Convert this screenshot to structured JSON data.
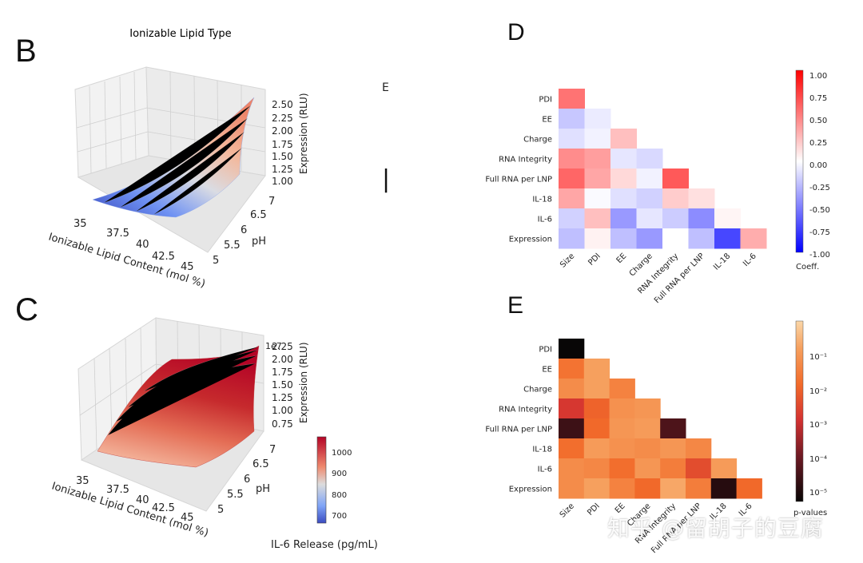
{
  "panel_labels": {
    "b": "B",
    "c": "C",
    "d": "D",
    "e": "E"
  },
  "stray_marks": {
    "e_fragment": "E",
    "bar_glyph": "|"
  },
  "watermark": "知乎 @留胡子的豆腐",
  "chart_data": [
    {
      "id": "B",
      "type": "surface3d",
      "title": "Ionizable Lipid  Type",
      "xlabel": "Ionizable Lipid Content (mol %)",
      "ylabel": "pH",
      "zlabel": "Expression (RLU)",
      "x_ticks": [
        "35",
        "37.5",
        "40",
        "42.5",
        "45"
      ],
      "y_ticks": [
        "5",
        "5.5",
        "6",
        "6.5",
        "7"
      ],
      "z_ticks": [
        "1.00",
        "1.25",
        "1.50",
        "1.75",
        "2.00",
        "2.25",
        "2.50"
      ],
      "xlim": [
        35,
        45
      ],
      "ylim": [
        5,
        7
      ],
      "zlim": [
        1.0,
        2.5
      ],
      "colormap": "coolwarm"
    },
    {
      "id": "C",
      "type": "surface3d",
      "xlabel": "Ionizable Lipid Content (mol %)",
      "ylabel": "pH",
      "zlabel": "Expression (RLU)",
      "z_offset": "1e7",
      "x_ticks": [
        "35",
        "37.5",
        "40",
        "42.5",
        "45"
      ],
      "y_ticks": [
        "5",
        "5.5",
        "6",
        "6.5",
        "7"
      ],
      "z_ticks": [
        "0.75",
        "1.00",
        "1.25",
        "1.50",
        "1.75",
        "2.00",
        "2.25"
      ],
      "xlim": [
        35,
        45
      ],
      "ylim": [
        5,
        7
      ],
      "zlim": [
        0.75,
        2.25
      ],
      "colormap": "coolwarm",
      "colorbar": {
        "label": "IL-6 Release (pg/mL)",
        "ticks": [
          "700",
          "800",
          "900",
          "1000"
        ],
        "range": [
          650,
          1060
        ]
      }
    },
    {
      "id": "D",
      "type": "heatmap",
      "row_labels": [
        "PDI",
        "EE",
        "Charge",
        "RNA Integrity",
        "Full RNA per LNP",
        "IL-18",
        "IL-6",
        "Expression"
      ],
      "col_labels": [
        "Size",
        "PDI",
        "EE",
        "Charge",
        "RNA Integrity",
        "Full RNA per LNP",
        "IL-18",
        "IL-6"
      ],
      "values": [
        [
          0.55
        ],
        [
          -0.22,
          -0.08
        ],
        [
          -0.12,
          -0.05,
          0.25
        ],
        [
          0.45,
          0.38,
          -0.1,
          -0.15
        ],
        [
          0.6,
          0.35,
          0.15,
          -0.05,
          0.65
        ],
        [
          0.35,
          -0.02,
          -0.12,
          -0.18,
          0.2,
          0.12
        ],
        [
          -0.18,
          0.25,
          -0.4,
          -0.1,
          -0.2,
          -0.45,
          0.04
        ],
        [
          -0.25,
          0.05,
          -0.25,
          -0.4,
          0.0,
          -0.25,
          -0.72,
          0.32
        ]
      ],
      "colorbar": {
        "label": "Coeff.",
        "ticks": [
          "1.00",
          "0.75",
          "0.50",
          "0.25",
          "0.00",
          "-0.25",
          "-0.50",
          "-0.75",
          "-1.00"
        ],
        "range": [
          -1.0,
          1.0
        ]
      }
    },
    {
      "id": "E",
      "type": "heatmap",
      "row_labels": [
        "PDI",
        "EE",
        "Charge",
        "RNA Integrity",
        "Full RNA per LNP",
        "IL-18",
        "IL-6",
        "Expression"
      ],
      "col_labels": [
        "Size",
        "PDI",
        "EE",
        "Charge",
        "RNA Integrity",
        "Full RNA per LNP",
        "IL-18",
        "IL-6"
      ],
      "col_labels_note": "rendered partially obscured by watermark",
      "log10_values": [
        [
          -5.3
        ],
        [
          -1.7,
          -0.8
        ],
        [
          -1.2,
          -0.8,
          -1.4
        ],
        [
          -2.8,
          -2.0,
          -1.1,
          -1.0
        ],
        [
          -4.6,
          -1.9,
          -1.0,
          -0.9,
          -4.4
        ],
        [
          -1.8,
          -0.9,
          -1.1,
          -1.2,
          -1.0,
          -1.3
        ],
        [
          -1.2,
          -1.3,
          -1.8,
          -1.0,
          -1.5,
          -2.4,
          -0.9
        ],
        [
          -1.2,
          -0.8,
          -1.4,
          -1.9,
          -0.7,
          -1.5,
          -4.9,
          -1.9
        ]
      ],
      "colorbar": {
        "label": "p-values",
        "ticks": [
          "10⁻¹",
          "10⁻²",
          "10⁻³",
          "10⁻⁴",
          "10⁻⁵"
        ],
        "range_log10": [
          -5.3,
          0
        ]
      }
    }
  ]
}
